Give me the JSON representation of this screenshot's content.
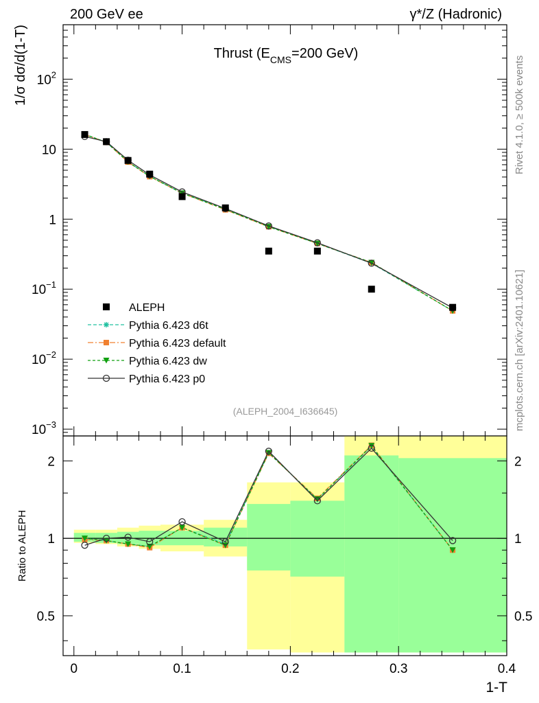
{
  "header": {
    "left": "200 GeV ee",
    "right": "γ*/Z (Hadronic)"
  },
  "side_text": {
    "top": "Rivet 4.1.0, ≥ 500k events",
    "bottom": "mcplots.cern.ch [arXiv:2401.10621]"
  },
  "colors": {
    "aleph": "#000000",
    "d6t": "#20c0a0",
    "default": "#f08030",
    "dw": "#10a010",
    "p0": "#333333",
    "band_yellow": "#ffff99",
    "band_green": "#99ff99"
  },
  "chart_data": [
    {
      "type": "line",
      "title": "Thrust (E_CMS=200 GeV)",
      "title_main": "Thrust (E",
      "title_sub": "CMS",
      "title_end": "=200 GeV)",
      "ylabel": "1/σ  dσ/d(1-T)",
      "yscale": "log",
      "ylim": [
        0.0008,
        600
      ],
      "xlim": [
        -0.01,
        0.4
      ],
      "yticks": [
        {
          "value": 0.001,
          "base": "10",
          "exp": "−3"
        },
        {
          "value": 0.01,
          "base": "10",
          "exp": "−2"
        },
        {
          "value": 0.1,
          "base": "10",
          "exp": "−1"
        },
        {
          "value": 1,
          "label": "1"
        },
        {
          "value": 10,
          "label": "10"
        },
        {
          "value": 100,
          "base": "10",
          "exp": "2"
        }
      ],
      "annotation": "(ALEPH_2004_I636645)",
      "x": [
        0.01,
        0.03,
        0.05,
        0.07,
        0.1,
        0.14,
        0.18,
        0.225,
        0.275,
        0.35
      ],
      "series": [
        {
          "name": "ALEPH",
          "style": "data",
          "values": [
            16.2,
            12.8,
            6.9,
            4.4,
            2.1,
            1.45,
            0.35,
            0.35,
            0.1,
            0.055
          ]
        },
        {
          "name": "Pythia 6.423 d6t",
          "style": "d6t",
          "values": [
            16.4,
            12.5,
            6.6,
            4.1,
            2.35,
            1.4,
            0.79,
            0.45,
            0.235,
            0.049
          ]
        },
        {
          "name": "Pythia 6.423 default",
          "style": "default",
          "values": [
            16.2,
            12.5,
            6.55,
            4.05,
            2.35,
            1.36,
            0.78,
            0.45,
            0.24,
            0.049
          ]
        },
        {
          "name": "Pythia 6.423 dw",
          "style": "dw",
          "values": [
            16.3,
            12.6,
            6.6,
            4.1,
            2.35,
            1.38,
            0.78,
            0.45,
            0.24,
            0.049
          ]
        },
        {
          "name": "Pythia 6.423 p0",
          "style": "p0",
          "values": [
            15.2,
            12.8,
            6.95,
            4.3,
            2.45,
            1.42,
            0.8,
            0.46,
            0.235,
            0.054
          ]
        }
      ]
    },
    {
      "type": "line",
      "ylabel": "Ratio to ALEPH",
      "xlabel": "1-T",
      "yscale": "log",
      "ylim": [
        0.35,
        2.5
      ],
      "xlim": [
        -0.01,
        0.4
      ],
      "xticks": [
        0,
        0.1,
        0.2,
        0.3,
        0.4
      ],
      "xtick_labels": [
        "0",
        "0.1",
        "0.2",
        "0.3",
        "0.4"
      ],
      "yticks": [
        0.5,
        1,
        2
      ],
      "ytick_labels": [
        "0.5",
        "1",
        "2"
      ],
      "bins": [
        [
          0,
          0.02
        ],
        [
          0.02,
          0.04
        ],
        [
          0.04,
          0.06
        ],
        [
          0.06,
          0.08
        ],
        [
          0.08,
          0.12
        ],
        [
          0.12,
          0.16
        ],
        [
          0.16,
          0.2
        ],
        [
          0.2,
          0.25
        ],
        [
          0.25,
          0.3
        ],
        [
          0.3,
          0.4
        ]
      ],
      "band_yellow": [
        [
          0.96,
          1.08
        ],
        [
          0.95,
          1.08
        ],
        [
          0.93,
          1.1
        ],
        [
          0.91,
          1.12
        ],
        [
          0.89,
          1.13
        ],
        [
          0.85,
          1.18
        ],
        [
          0.37,
          1.65
        ],
        [
          0.36,
          1.65
        ],
        [
          0.36,
          2.55
        ],
        [
          0.36,
          2.55
        ]
      ],
      "band_green": [
        [
          0.97,
          1.05
        ],
        [
          0.96,
          1.05
        ],
        [
          0.95,
          1.06
        ],
        [
          0.94,
          1.07
        ],
        [
          0.94,
          1.07
        ],
        [
          0.93,
          1.1
        ],
        [
          0.75,
          1.36
        ],
        [
          0.71,
          1.4
        ],
        [
          0.36,
          2.1
        ],
        [
          0.36,
          2.05
        ]
      ],
      "x": [
        0.01,
        0.03,
        0.05,
        0.07,
        0.1,
        0.14,
        0.18,
        0.225,
        0.275,
        0.35
      ],
      "series": [
        {
          "name": "Pythia 6.423 d6t",
          "style": "d6t",
          "values": [
            1.0,
            0.98,
            0.95,
            0.93,
            1.1,
            0.95,
            2.15,
            1.42,
            2.28,
            0.9
          ]
        },
        {
          "name": "Pythia 6.423 default",
          "style": "default",
          "values": [
            0.99,
            0.98,
            0.95,
            0.92,
            1.1,
            0.94,
            2.14,
            1.43,
            2.3,
            0.9
          ]
        },
        {
          "name": "Pythia 6.423 dw",
          "style": "dw",
          "values": [
            1.0,
            0.98,
            0.95,
            0.93,
            1.1,
            0.94,
            2.15,
            1.42,
            2.29,
            0.9
          ]
        },
        {
          "name": "Pythia 6.423 p0",
          "style": "p0",
          "values": [
            0.94,
            1.0,
            1.01,
            0.97,
            1.16,
            0.97,
            2.18,
            1.4,
            2.24,
            0.98
          ]
        }
      ]
    }
  ]
}
